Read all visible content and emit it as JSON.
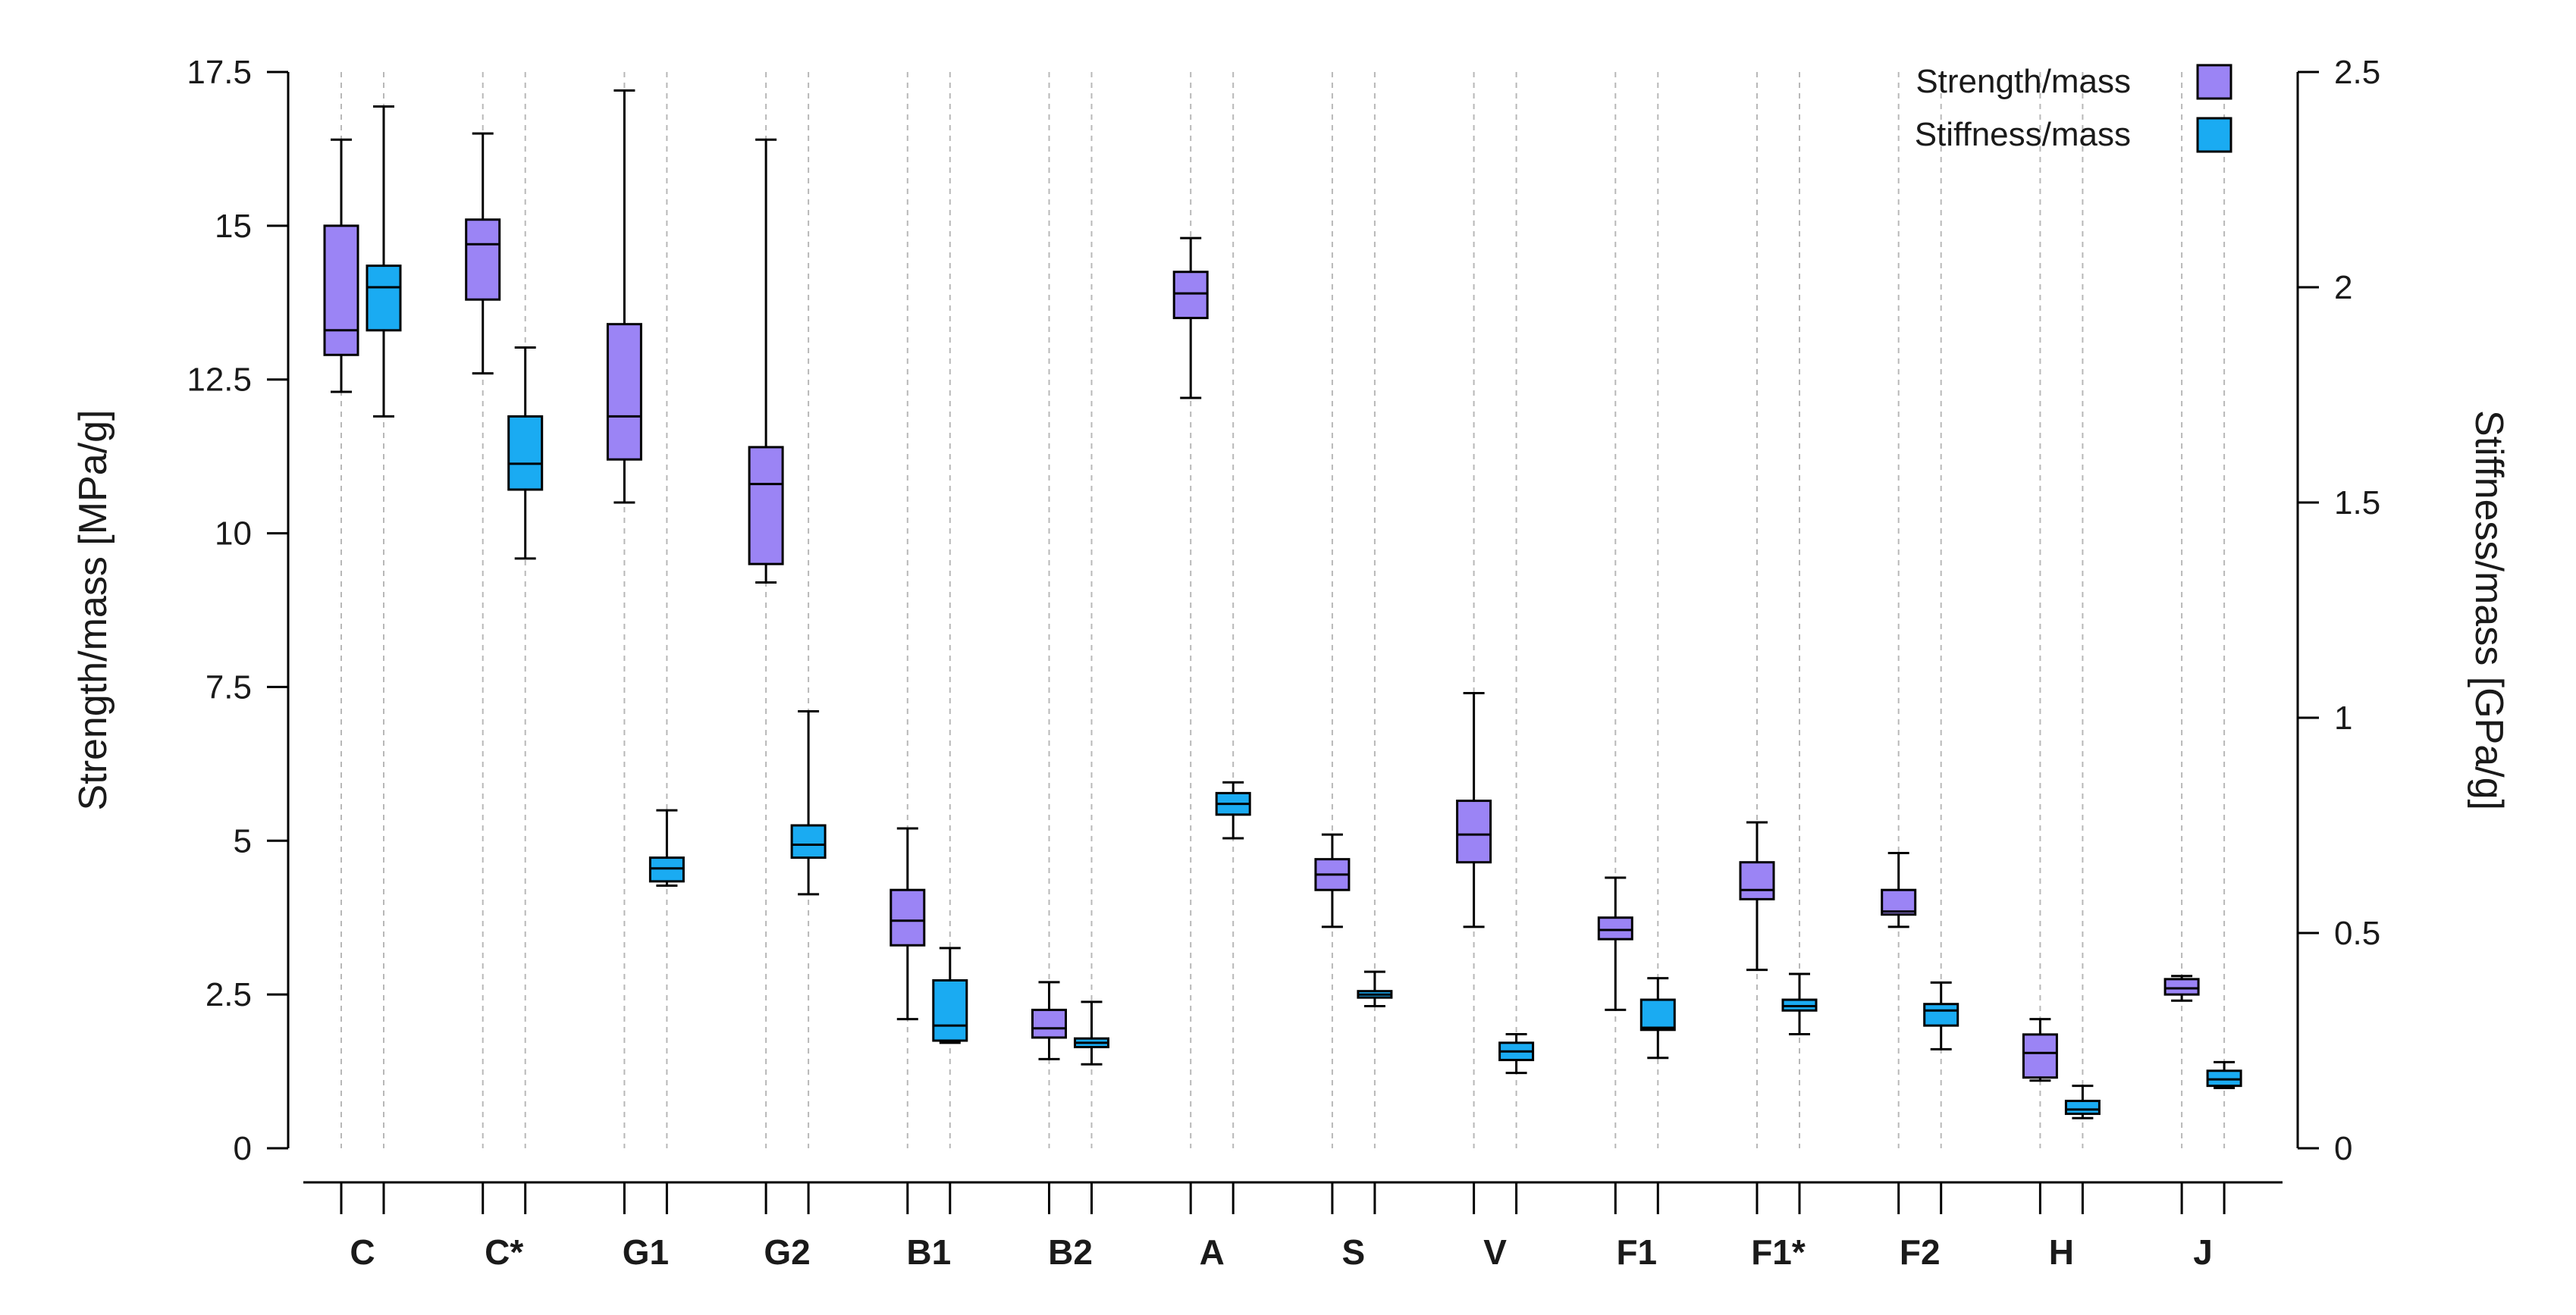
{
  "chart_data": {
    "type": "boxplot",
    "title": "",
    "categories": [
      "C",
      "C*",
      "G1",
      "G2",
      "B1",
      "B2",
      "A",
      "S",
      "V",
      "F1",
      "F1*",
      "F2",
      "H",
      "J"
    ],
    "left_axis": {
      "label": "Strength/mass [MPa/g]",
      "ylim": [
        0,
        17.5
      ],
      "ticks": [
        0,
        2.5,
        5,
        7.5,
        10,
        12.5,
        15,
        17.5
      ],
      "tick_labels": [
        "0",
        "2.5",
        "5",
        "7.5",
        "10",
        "12.5",
        "15",
        "17.5"
      ]
    },
    "right_axis": {
      "label": "Stiffness/mass [GPa/g]",
      "ylim": [
        0,
        2.5
      ],
      "ticks": [
        0,
        0.5,
        1,
        1.5,
        2,
        2.5
      ],
      "tick_labels": [
        "0",
        "0.5",
        "1",
        "1.5",
        "2",
        "2.5"
      ]
    },
    "legend": {
      "position": "top-right",
      "entries": [
        {
          "label": "Strength/mass",
          "color": "#9b84f5"
        },
        {
          "label": "Stiffness/mass",
          "color": "#1aabf2"
        }
      ]
    },
    "series": [
      {
        "name": "Strength/mass",
        "axis": "left",
        "color": "#9b84f5",
        "boxes": [
          {
            "min": 12.3,
            "q1": 12.9,
            "median": 13.3,
            "q3": 15.0,
            "max": 16.4
          },
          {
            "min": 12.6,
            "q1": 13.8,
            "median": 14.7,
            "q3": 15.1,
            "max": 16.5
          },
          {
            "min": 10.5,
            "q1": 11.2,
            "median": 11.9,
            "q3": 13.4,
            "max": 17.2
          },
          {
            "min": 9.2,
            "q1": 9.5,
            "median": 10.8,
            "q3": 11.4,
            "max": 16.4
          },
          {
            "min": 2.1,
            "q1": 3.3,
            "median": 3.7,
            "q3": 4.2,
            "max": 5.2
          },
          {
            "min": 1.45,
            "q1": 1.8,
            "median": 1.95,
            "q3": 2.25,
            "max": 2.7
          },
          {
            "min": 12.2,
            "q1": 13.5,
            "median": 13.9,
            "q3": 14.25,
            "max": 14.8
          },
          {
            "min": 3.6,
            "q1": 4.2,
            "median": 4.45,
            "q3": 4.7,
            "max": 5.1
          },
          {
            "min": 3.6,
            "q1": 4.65,
            "median": 5.1,
            "q3": 5.65,
            "max": 7.4
          },
          {
            "min": 2.25,
            "q1": 3.4,
            "median": 3.55,
            "q3": 3.75,
            "max": 4.4
          },
          {
            "min": 2.9,
            "q1": 4.05,
            "median": 4.2,
            "q3": 4.65,
            "max": 5.3
          },
          {
            "min": 3.6,
            "q1": 3.8,
            "median": 3.85,
            "q3": 4.2,
            "max": 4.8
          },
          {
            "min": 1.1,
            "q1": 1.15,
            "median": 1.55,
            "q3": 1.85,
            "max": 2.1
          },
          {
            "min": 2.4,
            "q1": 2.5,
            "median": 2.6,
            "q3": 2.75,
            "max": 2.8
          }
        ]
      },
      {
        "name": "Stiffness/mass",
        "axis": "right",
        "color": "#1aabf2",
        "boxes": [
          {
            "min": 1.7,
            "q1": 1.9,
            "median": 2.0,
            "q3": 2.05,
            "max": 2.42
          },
          {
            "min": 1.37,
            "q1": 1.53,
            "median": 1.59,
            "q3": 1.7,
            "max": 1.86
          },
          {
            "min": 0.61,
            "q1": 0.62,
            "median": 0.65,
            "q3": 0.675,
            "max": 0.785
          },
          {
            "min": 0.59,
            "q1": 0.675,
            "median": 0.705,
            "q3": 0.75,
            "max": 1.015
          },
          {
            "min": 0.245,
            "q1": 0.25,
            "median": 0.285,
            "q3": 0.39,
            "max": 0.465
          },
          {
            "min": 0.195,
            "q1": 0.235,
            "median": 0.245,
            "q3": 0.255,
            "max": 0.34
          },
          {
            "min": 0.72,
            "q1": 0.775,
            "median": 0.8,
            "q3": 0.825,
            "max": 0.85
          },
          {
            "min": 0.33,
            "q1": 0.35,
            "median": 0.357,
            "q3": 0.365,
            "max": 0.41
          },
          {
            "min": 0.175,
            "q1": 0.205,
            "median": 0.225,
            "q3": 0.245,
            "max": 0.265
          },
          {
            "min": 0.21,
            "q1": 0.275,
            "median": 0.28,
            "q3": 0.345,
            "max": 0.395
          },
          {
            "min": 0.265,
            "q1": 0.32,
            "median": 0.33,
            "q3": 0.345,
            "max": 0.405
          },
          {
            "min": 0.23,
            "q1": 0.285,
            "median": 0.32,
            "q3": 0.335,
            "max": 0.385
          },
          {
            "min": 0.07,
            "q1": 0.08,
            "median": 0.09,
            "q3": 0.11,
            "max": 0.145
          },
          {
            "min": 0.14,
            "q1": 0.145,
            "median": 0.16,
            "q3": 0.18,
            "max": 0.2
          }
        ]
      }
    ]
  }
}
